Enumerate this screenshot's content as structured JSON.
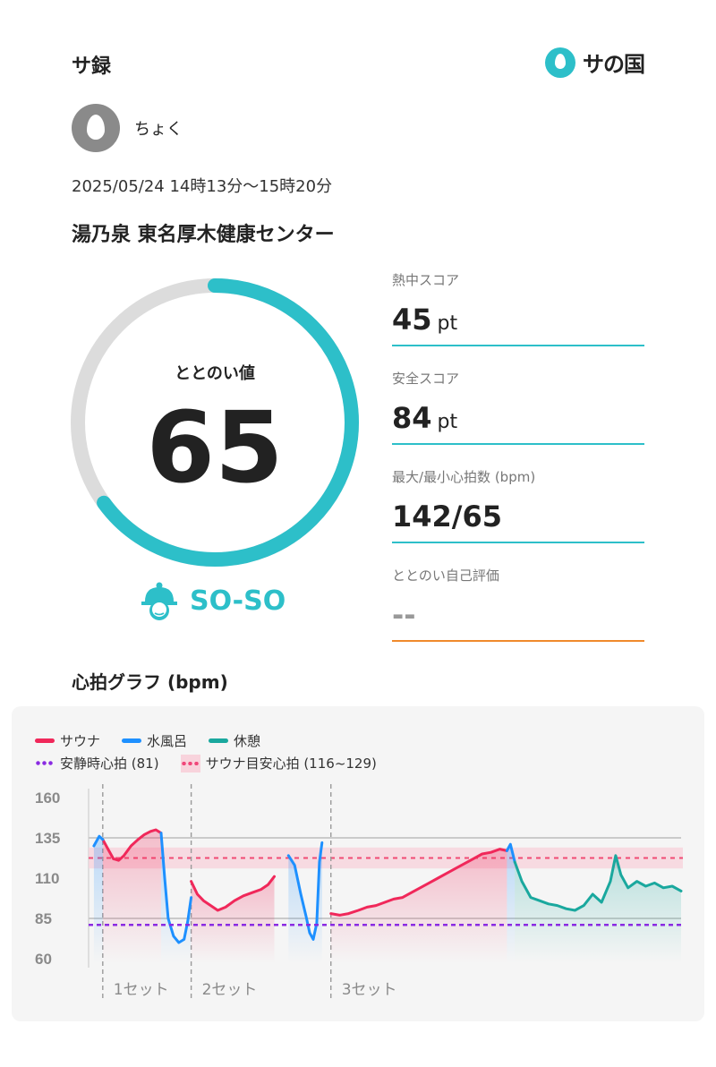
{
  "header": {
    "title": "サ録",
    "logo_text": "サの国"
  },
  "user": {
    "name": "ちょく",
    "avatar_icon": "drop-icon"
  },
  "visit": {
    "datetime": "2025/05/24 14時13分〜15時20分",
    "facility": "湯乃泉 東名厚木健康センター"
  },
  "totonoi": {
    "label": "ととのい値",
    "value": "65",
    "progress": 0.65,
    "mood": "SO-SO",
    "mood_icon": "sauna-hat-face-icon"
  },
  "stats": [
    {
      "label": "熱中スコア",
      "value": "45",
      "unit": "pt"
    },
    {
      "label": "安全スコア",
      "value": "84",
      "unit": "pt"
    },
    {
      "label": "最大/最小心拍数 (bpm)",
      "value": "142/65",
      "unit": ""
    },
    {
      "label": "ととのい自己評価",
      "value": "--",
      "unit": ""
    }
  ],
  "graph": {
    "title": "心拍グラフ (bpm)",
    "legend": {
      "sauna": "サウナ",
      "water": "水風呂",
      "rest": "休憩",
      "resting_hr": "安静時心拍 (81)",
      "sauna_target": "サウナ目安心拍 (116~129)"
    },
    "set_labels": [
      "1セット",
      "2セット",
      "3セット"
    ]
  },
  "colors": {
    "accent": "#2dbfc9",
    "sauna": "#f0285a",
    "water": "#1e90ff",
    "rest": "#1aa89e",
    "transition": "#8c8c8c",
    "resting_line": "#8a2be2",
    "target_band": "#f8d3dc",
    "self_eval_line": "#f08a2c"
  },
  "chart_data": {
    "type": "line",
    "ylim": [
      60,
      160
    ],
    "yticks": [
      160,
      135,
      110,
      85,
      60
    ],
    "xlim": [
      0,
      67
    ],
    "x_unit": "minutes since 14:13",
    "resting_hr": 81,
    "sauna_target_range": [
      116,
      129
    ],
    "set_boundaries": [
      1.6,
      11.6,
      27.4
    ],
    "series": [
      {
        "name": "サウナ",
        "segments": [
          {
            "points": [
              [
                1.6,
                134
              ],
              [
                2.2,
                128
              ],
              [
                2.8,
                122
              ],
              [
                3.4,
                121
              ],
              [
                4.0,
                124
              ],
              [
                4.8,
                130
              ],
              [
                5.6,
                134
              ],
              [
                6.3,
                137
              ],
              [
                7.0,
                139
              ],
              [
                7.6,
                140
              ],
              [
                8.2,
                138
              ]
            ]
          },
          {
            "points": [
              [
                11.6,
                108
              ],
              [
                12.3,
                100
              ],
              [
                13.0,
                96
              ],
              [
                13.8,
                93
              ],
              [
                14.6,
                90
              ],
              [
                15.5,
                92
              ],
              [
                16.5,
                96
              ],
              [
                17.5,
                99
              ],
              [
                18.5,
                101
              ],
              [
                19.5,
                103
              ],
              [
                20.3,
                106
              ],
              [
                21.0,
                111
              ]
            ]
          },
          {
            "points": [
              [
                27.4,
                88
              ],
              [
                28.4,
                87
              ],
              [
                29.4,
                88
              ],
              [
                30.5,
                90
              ],
              [
                31.5,
                92
              ],
              [
                32.5,
                93
              ],
              [
                33.5,
                95
              ],
              [
                34.5,
                97
              ],
              [
                35.5,
                98
              ],
              [
                36.5,
                101
              ],
              [
                37.5,
                104
              ],
              [
                38.5,
                107
              ],
              [
                39.5,
                110
              ],
              [
                40.5,
                113
              ],
              [
                41.5,
                116
              ],
              [
                42.5,
                119
              ],
              [
                43.5,
                122
              ],
              [
                44.5,
                125
              ],
              [
                45.5,
                126
              ],
              [
                46.5,
                128
              ],
              [
                47.3,
                127
              ]
            ]
          }
        ]
      },
      {
        "name": "水風呂",
        "segments": [
          {
            "points": [
              [
                0.6,
                130
              ],
              [
                1.2,
                136
              ],
              [
                1.6,
                134
              ]
            ]
          },
          {
            "points": [
              [
                8.2,
                138
              ],
              [
                8.6,
                110
              ],
              [
                9.0,
                85
              ],
              [
                9.6,
                74
              ],
              [
                10.2,
                70
              ],
              [
                10.8,
                72
              ],
              [
                11.2,
                83
              ],
              [
                11.6,
                98
              ]
            ]
          },
          {
            "points": [
              [
                22.6,
                124
              ],
              [
                23.3,
                118
              ],
              [
                24.0,
                100
              ],
              [
                24.6,
                86
              ],
              [
                25.0,
                76
              ],
              [
                25.4,
                72
              ],
              [
                25.8,
                82
              ],
              [
                26.1,
                120
              ],
              [
                26.4,
                132
              ]
            ]
          },
          {
            "points": [
              [
                47.3,
                127
              ],
              [
                47.7,
                131
              ],
              [
                48.2,
                120
              ]
            ]
          }
        ]
      },
      {
        "name": "休憩",
        "segments": [
          {
            "points": [
              [
                48.2,
                120
              ],
              [
                49.0,
                108
              ],
              [
                50.0,
                98
              ],
              [
                51.0,
                96
              ],
              [
                52.0,
                94
              ],
              [
                53.0,
                93
              ],
              [
                54.0,
                91
              ],
              [
                55.0,
                90
              ],
              [
                56.0,
                93
              ],
              [
                57.0,
                100
              ],
              [
                58.0,
                95
              ],
              [
                59.0,
                108
              ],
              [
                59.6,
                124
              ],
              [
                60.2,
                112
              ],
              [
                61.0,
                104
              ],
              [
                62.0,
                108
              ],
              [
                63.0,
                105
              ],
              [
                64.0,
                107
              ],
              [
                65.0,
                104
              ],
              [
                66.0,
                105
              ],
              [
                67.0,
                102
              ]
            ]
          }
        ]
      }
    ]
  }
}
